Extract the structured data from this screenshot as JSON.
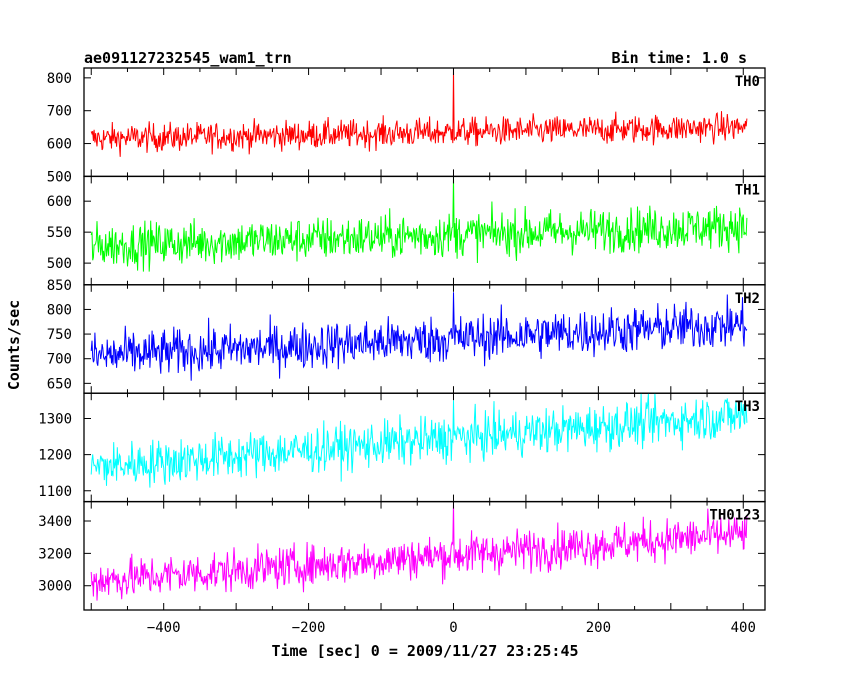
{
  "header": {
    "title": "ae091127232545_wam1_trn",
    "bin_time": "Bin time: 1.0 s"
  },
  "axes": {
    "xlabel": "Time [sec] 0 = 2009/11/27 23:25:45",
    "ylabel": "Counts/sec"
  },
  "chart_data": {
    "type": "line",
    "title": "ae091127232545_wam1_trn",
    "subtitle": "Bin time: 1.0 s",
    "xlabel": "Time [sec] 0 = 2009/11/27 23:25:45",
    "ylabel": "Counts/sec",
    "xlim": [
      -510,
      430
    ],
    "x_range": [
      -500,
      405
    ],
    "x_step": 1,
    "x_ticks": [
      -400,
      -200,
      0,
      200,
      400
    ],
    "legend": "none",
    "grid": false,
    "burst_time": 0,
    "panels": [
      {
        "name": "TH0",
        "color": "#ff0000",
        "ylim": [
          500,
          830
        ],
        "y_ticks": [
          500,
          600,
          700,
          800
        ],
        "baseline_start": 615,
        "baseline_end": 650,
        "noise_amplitude": 22,
        "spike_peak": 830,
        "min_value": 530,
        "max_value": 830
      },
      {
        "name": "TH1",
        "color": "#00ff00",
        "ylim": [
          465,
          640
        ],
        "y_ticks": [
          500,
          550,
          600
        ],
        "baseline_start": 528,
        "baseline_end": 560,
        "noise_amplitude": 18,
        "spike_peak": 640,
        "min_value": 475,
        "max_value": 640
      },
      {
        "name": "TH2",
        "color": "#0000ff",
        "ylim": [
          630,
          850
        ],
        "y_ticks": [
          650,
          700,
          750,
          800,
          850
        ],
        "baseline_start": 705,
        "baseline_end": 770,
        "noise_amplitude": 24,
        "spike_peak": 835,
        "min_value": 640,
        "max_value": 850
      },
      {
        "name": "TH3",
        "color": "#00ffff",
        "ylim": [
          1070,
          1370
        ],
        "y_ticks": [
          1100,
          1200,
          1300
        ],
        "baseline_start": 1165,
        "baseline_end": 1310,
        "noise_amplitude": 32,
        "spike_peak": 1350,
        "min_value": 1080,
        "max_value": 1370
      },
      {
        "name": "TH0123",
        "color": "#ff00ff",
        "ylim": [
          2850,
          3520
        ],
        "y_ticks": [
          3000,
          3200,
          3400
        ],
        "baseline_start": 3030,
        "baseline_end": 3320,
        "noise_amplitude": 65,
        "spike_peak": 3520,
        "min_value": 2870,
        "max_value": 3520
      }
    ]
  }
}
